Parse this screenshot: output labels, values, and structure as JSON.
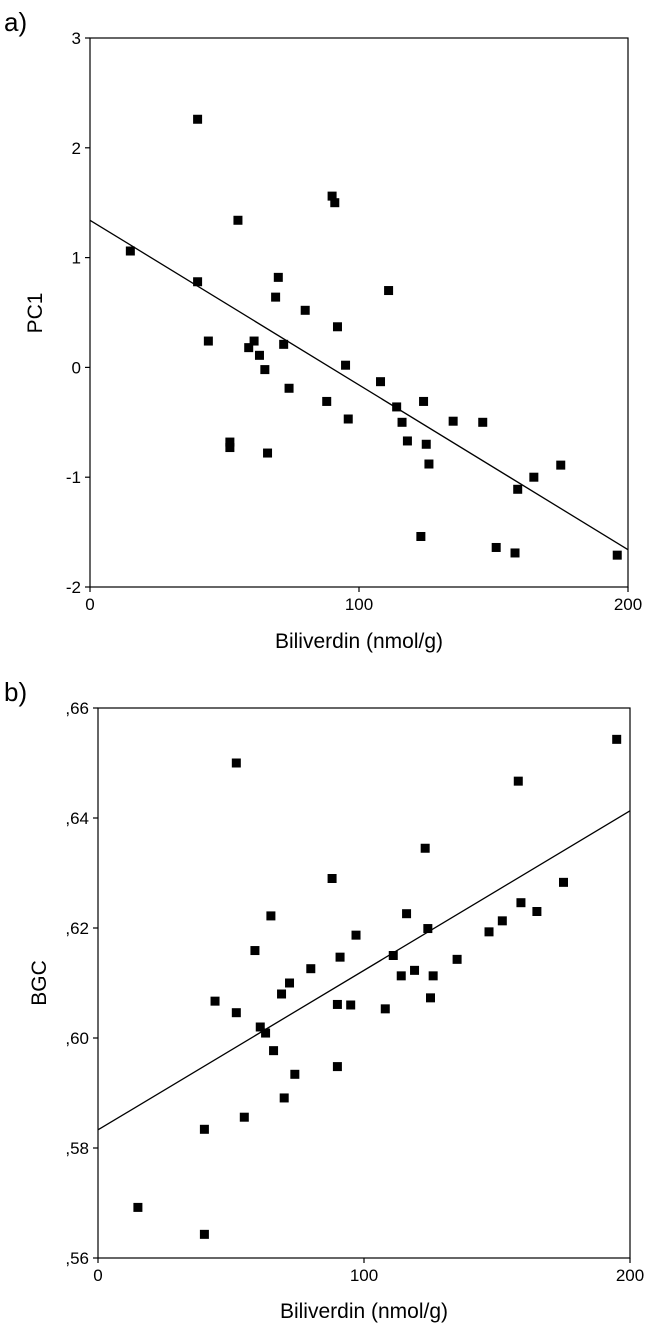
{
  "chart_data": [
    {
      "type": "scatter",
      "panel_label": "a)",
      "xlabel": "Biliverdin (nmol/g)",
      "ylabel": "PC1",
      "xlim": [
        0,
        200
      ],
      "ylim": [
        -2,
        3
      ],
      "xticks": [
        0,
        100,
        200
      ],
      "xtick_labels": [
        "0",
        "100",
        "200"
      ],
      "yticks": [
        -2,
        -1,
        0,
        1,
        2,
        3
      ],
      "ytick_labels": [
        "-2",
        "-1",
        "0",
        "1",
        "2",
        "3"
      ],
      "grid": false,
      "fit_line": [
        [
          0,
          1.34
        ],
        [
          200,
          -1.66
        ]
      ],
      "points": [
        [
          15,
          1.06
        ],
        [
          40,
          2.26
        ],
        [
          40,
          0.78
        ],
        [
          44,
          0.24
        ],
        [
          52,
          -0.68
        ],
        [
          52,
          -0.73
        ],
        [
          55,
          1.34
        ],
        [
          59,
          0.18
        ],
        [
          61,
          0.24
        ],
        [
          63,
          0.11
        ],
        [
          65,
          -0.02
        ],
        [
          66,
          -0.78
        ],
        [
          69,
          0.64
        ],
        [
          70,
          0.82
        ],
        [
          72,
          0.21
        ],
        [
          74,
          -0.19
        ],
        [
          80,
          0.52
        ],
        [
          88,
          -0.31
        ],
        [
          90,
          1.56
        ],
        [
          91,
          1.5
        ],
        [
          92,
          0.37
        ],
        [
          95,
          0.02
        ],
        [
          96,
          -0.47
        ],
        [
          108,
          -0.13
        ],
        [
          111,
          0.7
        ],
        [
          114,
          -0.36
        ],
        [
          116,
          -0.5
        ],
        [
          118,
          -0.67
        ],
        [
          123,
          -1.54
        ],
        [
          124,
          -0.31
        ],
        [
          125,
          -0.7
        ],
        [
          126,
          -0.88
        ],
        [
          135,
          -0.49
        ],
        [
          146,
          -0.5
        ],
        [
          151,
          -1.64
        ],
        [
          158,
          -1.69
        ],
        [
          159,
          -1.11
        ],
        [
          165,
          -1.0
        ],
        [
          175,
          -0.89
        ],
        [
          196,
          -1.71
        ]
      ]
    },
    {
      "type": "scatter",
      "panel_label": "b)",
      "xlabel": "Biliverdin (nmol/g)",
      "ylabel": "BGC",
      "xlim": [
        0,
        200
      ],
      "ylim": [
        0.56,
        0.66
      ],
      "xticks": [
        0,
        100,
        200
      ],
      "xtick_labels": [
        "0",
        "100",
        "200"
      ],
      "yticks": [
        0.56,
        0.58,
        0.6,
        0.62,
        0.64,
        0.66
      ],
      "ytick_labels": [
        ",56",
        ",58",
        ",60",
        ",62",
        ",64",
        ",66"
      ],
      "grid": false,
      "fit_line": [
        [
          0,
          0.5833
        ],
        [
          200,
          0.6413
        ]
      ],
      "points": [
        [
          15,
          0.5692
        ],
        [
          40,
          0.5834
        ],
        [
          40,
          0.5643
        ],
        [
          44,
          0.6067
        ],
        [
          52,
          0.6046
        ],
        [
          52,
          0.65
        ],
        [
          55,
          0.5856
        ],
        [
          59,
          0.6159
        ],
        [
          61,
          0.602
        ],
        [
          63,
          0.6009
        ],
        [
          65,
          0.6222
        ],
        [
          66,
          0.5977
        ],
        [
          69,
          0.608
        ],
        [
          70,
          0.5891
        ],
        [
          72,
          0.61
        ],
        [
          74,
          0.5934
        ],
        [
          80,
          0.6126
        ],
        [
          88,
          0.629
        ],
        [
          90,
          0.5948
        ],
        [
          90,
          0.6061
        ],
        [
          91,
          0.6147
        ],
        [
          95,
          0.606
        ],
        [
          97,
          0.6187
        ],
        [
          108,
          0.6053
        ],
        [
          111,
          0.615
        ],
        [
          114,
          0.6113
        ],
        [
          116,
          0.6226
        ],
        [
          119,
          0.6123
        ],
        [
          123,
          0.6345
        ],
        [
          124,
          0.6199
        ],
        [
          125,
          0.6073
        ],
        [
          126,
          0.6113
        ],
        [
          135,
          0.6143
        ],
        [
          147,
          0.6193
        ],
        [
          152,
          0.6213
        ],
        [
          158,
          0.6467
        ],
        [
          159,
          0.6246
        ],
        [
          165,
          0.623
        ],
        [
          175,
          0.6283
        ],
        [
          195,
          0.6543
        ]
      ]
    }
  ]
}
